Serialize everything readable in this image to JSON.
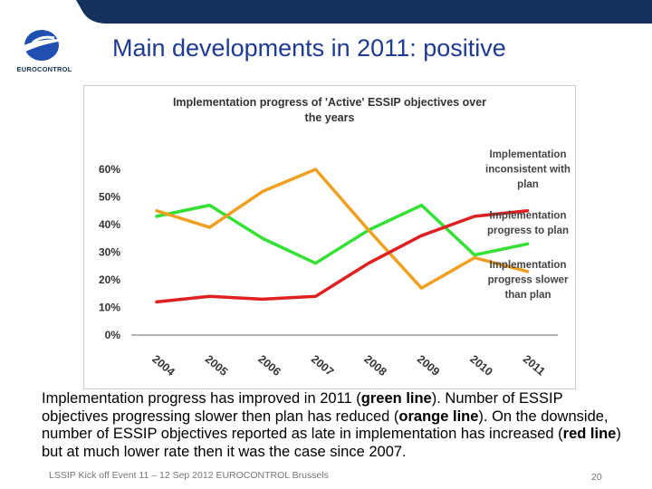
{
  "slide": {
    "title": "Main developments in 2011: positive",
    "logo_text": "EUROCONTROL",
    "footer": "LSSIP Kick off Event 11 – 12 Sep 2012 EUROCONTROL Brussels",
    "page_number": "20",
    "body": {
      "p1": "Implementation progress has improved in 2011 (",
      "green_label": "green line",
      "p2": "). Number of ESSIP objectives progressing slower then plan has reduced (",
      "orange_label": "orange line",
      "p3": "). On the downside, number of ESSIP objectives reported as late in implementation has increased (",
      "red_label": "red line",
      "p4": ") but at much lower rate then it was the case since 2007."
    }
  },
  "colors": {
    "brand_blue": "#1f3a93",
    "top_bar": "#16325c",
    "green": "#33e033",
    "orange": "#f0a020",
    "red": "#e02020"
  },
  "chart_data": {
    "type": "line",
    "title": "Implementation progress of 'Active' ESSIP objectives over the years",
    "categories": [
      "2004",
      "2005",
      "2006",
      "2007",
      "2008",
      "2009",
      "2010",
      "2011"
    ],
    "y_ticks": [
      "0%",
      "10%",
      "20%",
      "30%",
      "40%",
      "50%",
      "60%"
    ],
    "ylim": [
      0,
      60
    ],
    "grid": false,
    "series": [
      {
        "key": "green",
        "values": [
          43,
          47,
          35,
          26,
          38,
          47,
          29,
          33
        ]
      },
      {
        "key": "orange",
        "values": [
          45,
          39,
          52,
          60,
          38,
          17,
          28,
          23
        ]
      },
      {
        "key": "red",
        "values": [
          12,
          14,
          13,
          14,
          26,
          36,
          43,
          45
        ]
      }
    ],
    "annotations": [
      {
        "key": "green",
        "lines": [
          "Implementation",
          "progress to plan"
        ]
      },
      {
        "key": "orange",
        "lines": [
          "Implementation",
          "progress slower",
          "than plan"
        ]
      },
      {
        "key": "red",
        "lines": [
          "Implementation",
          "inconsistent with",
          "plan"
        ]
      }
    ]
  }
}
